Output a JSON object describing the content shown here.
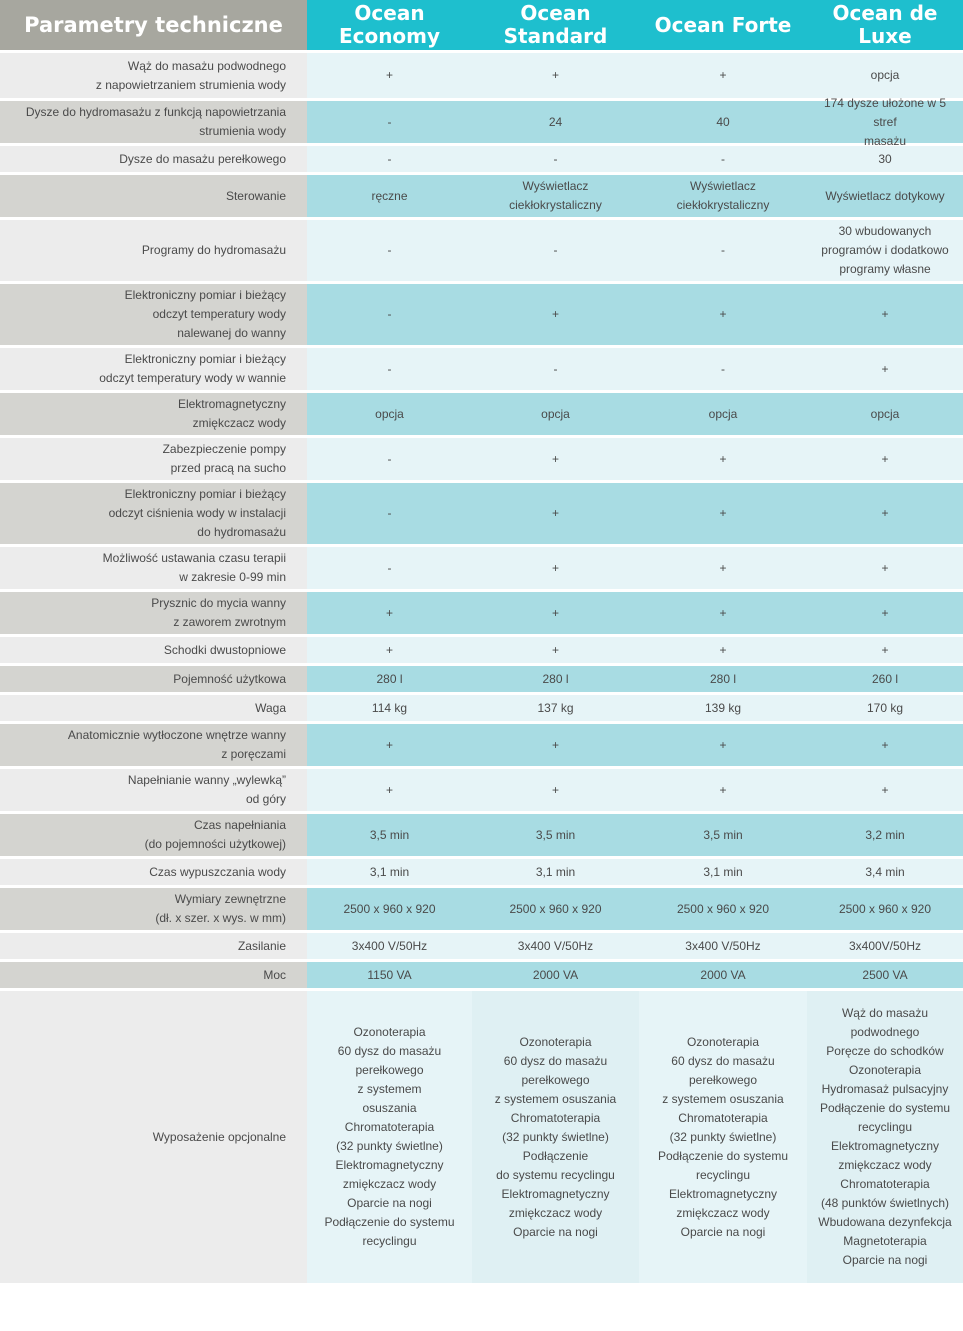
{
  "header": {
    "title": "Parametry techniczne",
    "models": [
      "Ocean\nEconomy",
      "Ocean\nStandard",
      "Ocean Forte",
      "Ocean de Luxe"
    ]
  },
  "rows": [
    {
      "label": "Wąż do masażu podwodnego\nz napowietrzaniem strumienia wody",
      "values": [
        "+",
        "+",
        "+",
        "opcja"
      ]
    },
    {
      "label": "Dysze do hydromasażu z funkcją napowietrzania\nstrumienia wody",
      "values": [
        "-",
        "24",
        "40",
        "174 dysze ułożone w 5 stref\nmasażu"
      ]
    },
    {
      "label": "Dysze do masażu perełkowego",
      "values": [
        "-",
        "-",
        "-",
        "30"
      ]
    },
    {
      "label": "Sterowanie",
      "values": [
        "ręczne",
        "Wyświetlacz\nciekłokrystaliczny",
        "Wyświetlacz\nciekłokrystaliczny",
        "Wyświetlacz dotykowy"
      ]
    },
    {
      "label": "Programy do hydromasażu",
      "values": [
        "-",
        "-",
        "-",
        "30 wbudowanych\nprogramów i dodatkowo\nprogramy własne"
      ]
    },
    {
      "label": "Elektroniczny pomiar i bieżący\nodczyt temperatury wody\nnalewanej do wanny",
      "values": [
        "-",
        "+",
        "+",
        "+"
      ]
    },
    {
      "label": "Elektroniczny pomiar i bieżący\nodczyt temperatury wody w wannie",
      "values": [
        "-",
        "-",
        "-",
        "+"
      ]
    },
    {
      "label": "Elektromagnetyczny\nzmiękczacz wody",
      "values": [
        "opcja",
        "opcja",
        "opcja",
        "opcja"
      ]
    },
    {
      "label": "Zabezpieczenie pompy\nprzed pracą na sucho",
      "values": [
        "-",
        "+",
        "+",
        "+"
      ]
    },
    {
      "label": "Elektroniczny pomiar i bieżący\nodczyt ciśnienia wody w instalacji\ndo hydromasażu",
      "values": [
        "-",
        "+",
        "+",
        "+"
      ]
    },
    {
      "label": "Możliwość ustawania czasu terapii\nw zakresie 0-99 min",
      "values": [
        "-",
        "+",
        "+",
        "+"
      ]
    },
    {
      "label": "Prysznic do mycia wanny\nz zaworem zwrotnym",
      "values": [
        "+",
        "+",
        "+",
        "+"
      ]
    },
    {
      "label": "Schodki dwustopniowe",
      "values": [
        "+",
        "+",
        "+",
        "+"
      ]
    },
    {
      "label": "Pojemność użytkowa",
      "values": [
        "280 l",
        "280 l",
        "280 l",
        "260 l"
      ]
    },
    {
      "label": "Waga",
      "values": [
        "114 kg",
        "137 kg",
        "139 kg",
        "170 kg"
      ]
    },
    {
      "label": "Anatomicznie wytłoczone wnętrze wanny\nz poręczami",
      "values": [
        "+",
        "+",
        "+",
        "+"
      ]
    },
    {
      "label": "Napełnianie wanny „wylewką”\nod góry",
      "values": [
        "+",
        "+",
        "+",
        "+"
      ]
    },
    {
      "label": "Czas napełniania\n(do pojemności użytkowej)",
      "values": [
        "3,5 min",
        "3,5 min",
        "3,5 min",
        "3,2 min"
      ]
    },
    {
      "label": "Czas wypuszczania wody",
      "values": [
        "3,1 min",
        "3,1 min",
        "3,1 min",
        "3,4 min"
      ]
    },
    {
      "label": "Wymiary zewnętrzne\n(dł. x szer. x wys. w mm)",
      "values": [
        "2500 x 960 x 920",
        "2500 x 960 x 920",
        "2500 x 960 x 920",
        "2500 x 960 x 920"
      ]
    },
    {
      "label": "Zasilanie",
      "values": [
        "3x400 V/50Hz",
        "3x400 V/50Hz",
        "3x400 V/50Hz",
        "3x400V/50Hz"
      ]
    },
    {
      "label": "Moc",
      "values": [
        "1150 VA",
        "2000 VA",
        "2000 VA",
        "2500 VA"
      ]
    },
    {
      "label": "Wyposażenie opcjonalne",
      "values": [
        "Ozonoterapia\n60 dysz do masażu\nperełkowego\nz systemem\nosuszania\nChromatoterapia\n(32 punkty świetlne)\nElektromagnetyczny\nzmiękczacz wody\nOparcie na nogi\nPodłączenie do systemu\nrecyclingu",
        "Ozonoterapia\n60 dysz do masażu\nperełkowego\nz systemem osuszania\nChromatoterapia\n(32 punkty świetlne)\nPodłączenie\ndo systemu recyclingu\nElektromagnetyczny\nzmiękczacz wody\nOparcie na nogi",
        "Ozonoterapia\n60 dysz do masażu\nperełkowego\nz systemem osuszania\nChromatoterapia\n(32 punkty świetlne)\nPodłączenie do systemu\nrecyclingu\nElektromagnetyczny\nzmiękczacz wody\nOparcie na nogi",
        "Wąż do masażu\npodwodnego\nPoręcze do schodków\nOzonoterapia\nHydromasaż pulsacyjny\nPodłączenie do systemu\nrecyclingu\nElektromagnetyczny\nzmiękczacz wody\nChromatoterapia\n(48 punktów świetlnych)\nWbudowana dezynfekcja\nMagnetoterapia\nOparcie na nogi"
      ]
    }
  ]
}
